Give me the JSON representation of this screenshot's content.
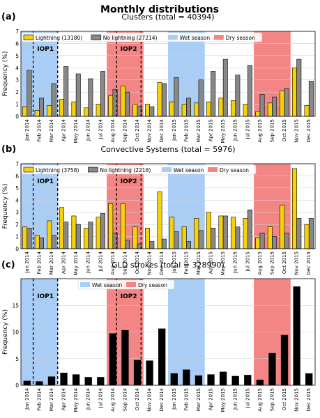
{
  "figure_title": "Monthly distributions",
  "months": [
    "Jan 2014",
    "Feb 2014",
    "Mar 2014",
    "Apr 2014",
    "May 2014",
    "Jun 2014",
    "Jul 2014",
    "Aug 2014",
    "Sep 2014",
    "Oct 2014",
    "Nov 2014",
    "Dec 2014",
    "Jan 2015",
    "Feb 2015",
    "Mar 2015",
    "Apr 2015",
    "May 2015",
    "Jun 2015",
    "Jul 2015",
    "Aug 2015",
    "Sep 2015",
    "Oct 2015",
    "Nov 2015",
    "Dec 2015"
  ],
  "colors": {
    "lightning": "#f5d20a",
    "no_lightning": "#888888",
    "gld": "#000000",
    "wet_season": "#a9cdf5",
    "dry_season": "#f48585"
  },
  "chart_data": [
    {
      "panel": "(a)",
      "type": "bar",
      "title": "Clusters (total = 40394)",
      "ylabel": "Frequency (%)",
      "ylim": [
        0,
        7
      ],
      "yticks": [
        0,
        1,
        2,
        3,
        4,
        5,
        6,
        7
      ],
      "grid": true,
      "legend_position": "top",
      "series": [
        {
          "name": "Lightning (13180)",
          "values": [
            0.8,
            0.5,
            0.9,
            1.4,
            1.2,
            0.7,
            1.0,
            1.7,
            2.5,
            1.0,
            1.0,
            2.8,
            1.2,
            1.0,
            1.1,
            1.2,
            1.5,
            1.3,
            1.0,
            0.4,
            1.1,
            2.1,
            4.0,
            0.9
          ]
        },
        {
          "name": "No lightning (27214)",
          "values": [
            3.8,
            1.5,
            2.7,
            4.1,
            3.5,
            3.1,
            3.7,
            2.2,
            2.0,
            0.8,
            0.8,
            2.7,
            3.2,
            1.5,
            3.0,
            3.7,
            4.7,
            3.4,
            4.2,
            1.8,
            1.6,
            2.3,
            4.7,
            2.9
          ]
        }
      ],
      "wet_season_label": "Wet season",
      "dry_season_label": "Dry season",
      "shading": [
        {
          "season": "wet",
          "from_month": 0,
          "to_month": 2
        },
        {
          "season": "dry",
          "from_month": 7,
          "to_month": 9
        },
        {
          "season": "wet",
          "from_month": 12,
          "to_month": 14
        },
        {
          "season": "dry",
          "from_month": 19,
          "to_month": 21
        }
      ],
      "iops": [
        {
          "label": "IOP1",
          "from_month": 1,
          "to_month": 3
        },
        {
          "label": "IOP2",
          "from_month": 7.8,
          "to_month": 9.8
        }
      ]
    },
    {
      "panel": "(b)",
      "type": "bar",
      "title": "Convective Systems (total = 5976)",
      "ylabel": "Frequency (%)",
      "ylim": [
        0,
        7
      ],
      "yticks": [
        0,
        1,
        2,
        3,
        4,
        5,
        6,
        7
      ],
      "grid": true,
      "legend_position": "top",
      "series": [
        {
          "name": "Lightning (3758)",
          "values": [
            1.8,
            1.1,
            2.3,
            3.4,
            2.7,
            1.7,
            2.6,
            3.7,
            3.7,
            1.8,
            1.7,
            4.7,
            2.6,
            1.8,
            2.5,
            3.0,
            2.7,
            2.6,
            2.5,
            0.9,
            1.8,
            3.6,
            6.6,
            2.0
          ]
        },
        {
          "name": "No lightning (2218)",
          "values": [
            1.7,
            0.9,
            1.1,
            2.2,
            2.0,
            2.2,
            2.9,
            1.3,
            0.7,
            0.4,
            0.6,
            0.8,
            1.4,
            0.6,
            1.5,
            1.7,
            2.7,
            1.8,
            3.2,
            1.3,
            1.0,
            1.3,
            2.5,
            2.5
          ]
        }
      ],
      "wet_season_label": "Wet season",
      "dry_season_label": "Dry season",
      "shading": [
        {
          "season": "wet",
          "from_month": 0,
          "to_month": 2
        },
        {
          "season": "dry",
          "from_month": 7,
          "to_month": 9
        },
        {
          "season": "wet",
          "from_month": 12,
          "to_month": 14
        },
        {
          "season": "dry",
          "from_month": 19,
          "to_month": 21
        }
      ],
      "iops": [
        {
          "label": "IOP1",
          "from_month": 1,
          "to_month": 3
        },
        {
          "label": "IOP2",
          "from_month": 7.8,
          "to_month": 9.8
        }
      ]
    },
    {
      "panel": "(c)",
      "type": "bar",
      "title": "GLD strokes (total = 328990)",
      "ylabel": "Frequency (%)",
      "ylim": [
        0,
        20
      ],
      "yticks": [
        0,
        5,
        10,
        15
      ],
      "grid": true,
      "legend_position": "top",
      "series": [
        {
          "values": [
            0.8,
            0.7,
            1.6,
            2.3,
            2.0,
            1.5,
            1.5,
            9.7,
            10.3,
            4.7,
            4.6,
            10.6,
            2.2,
            2.9,
            1.8,
            2.0,
            2.5,
            1.7,
            1.9,
            1.0,
            6.0,
            9.4,
            18.5,
            2.2
          ]
        }
      ],
      "wet_season_label": "Wet season",
      "dry_season_label": "Dry season",
      "shading": [
        {
          "season": "wet",
          "from_month": 0,
          "to_month": 2
        },
        {
          "season": "dry",
          "from_month": 7,
          "to_month": 9
        },
        {
          "season": "wet",
          "from_month": 12,
          "to_month": 14
        },
        {
          "season": "dry",
          "from_month": 19,
          "to_month": 21
        }
      ],
      "iops": [
        {
          "label": "IOP1",
          "from_month": 1,
          "to_month": 3
        },
        {
          "label": "IOP2",
          "from_month": 7.8,
          "to_month": 9.8
        }
      ]
    }
  ]
}
